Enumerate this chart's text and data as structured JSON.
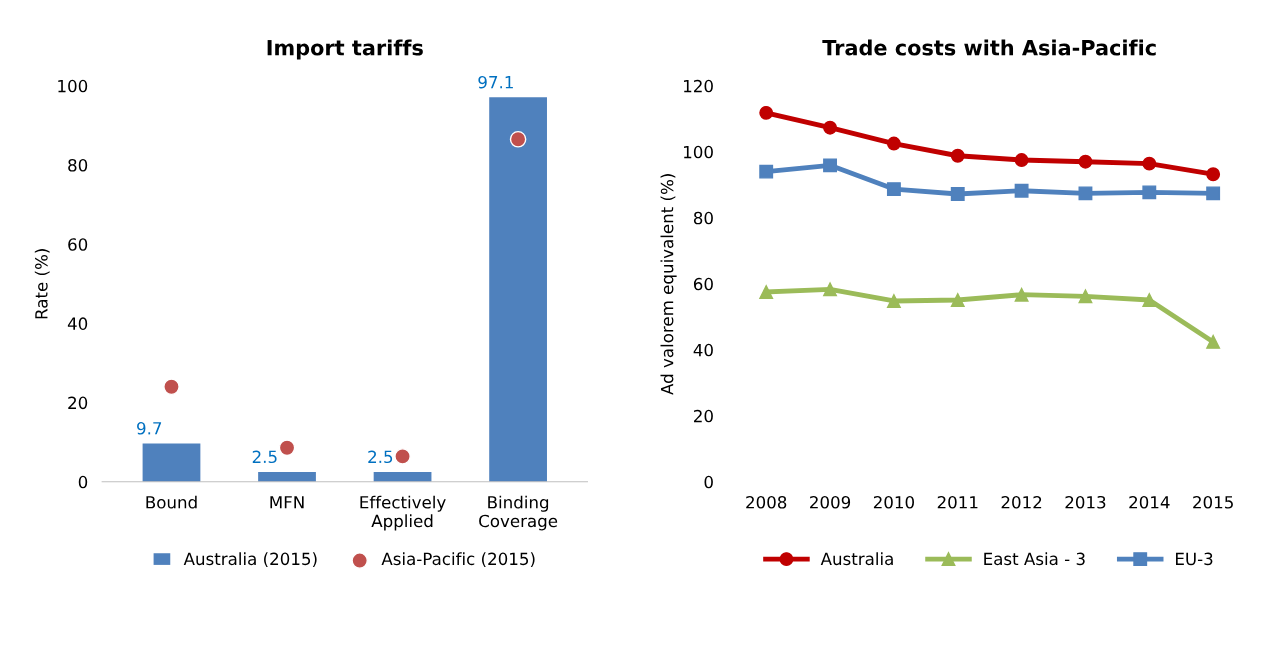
{
  "chart_data": [
    {
      "type": "bar",
      "title": "Import tariffs",
      "ylabel": "Rate (%)",
      "categories": [
        "Bound",
        "MFN",
        "Effectively\nApplied",
        "Binding\nCoverage"
      ],
      "ylim": [
        0,
        100
      ],
      "yticks": [
        0,
        20,
        40,
        60,
        80,
        100
      ],
      "grid": false,
      "legend": "bottom",
      "series": [
        {
          "name": "Australia (2015)",
          "type": "bar",
          "color": "#4f81bd",
          "values": [
            9.7,
            2.5,
            2.5,
            97.1
          ],
          "value_labels": [
            "9.7",
            "2.5",
            "2.5",
            "97.1"
          ]
        },
        {
          "name": "Asia-Pacific (2015)",
          "type": "scatter",
          "color": "#c0504d",
          "values": [
            24,
            8.6,
            6.4,
            86.5
          ]
        }
      ]
    },
    {
      "type": "line",
      "title": "Trade costs with Asia-Pacific",
      "ylabel": "Ad valorem equivalent (%)",
      "categories": [
        "2008",
        "2009",
        "2010",
        "2011",
        "2012",
        "2013",
        "2014",
        "2015"
      ],
      "ylim": [
        0,
        120
      ],
      "yticks": [
        0,
        20,
        40,
        60,
        80,
        100,
        120
      ],
      "grid": false,
      "legend": "bottom",
      "line_style": "solid",
      "series": [
        {
          "name": "Australia",
          "color": "#c00000",
          "marker": "circle",
          "values": [
            111.8,
            107.3,
            102.5,
            98.8,
            97.5,
            97.0,
            96.4,
            93.2
          ]
        },
        {
          "name": "East Asia - 3",
          "color": "#9bbb59",
          "marker": "triangle",
          "values": [
            57.5,
            58.3,
            54.8,
            55.1,
            56.7,
            56.2,
            55.1,
            42.4
          ]
        },
        {
          "name": "EU-3",
          "color": "#4f81bd",
          "marker": "square",
          "values": [
            94.0,
            95.9,
            88.7,
            87.2,
            88.2,
            87.4,
            87.7,
            87.4
          ]
        }
      ]
    }
  ]
}
